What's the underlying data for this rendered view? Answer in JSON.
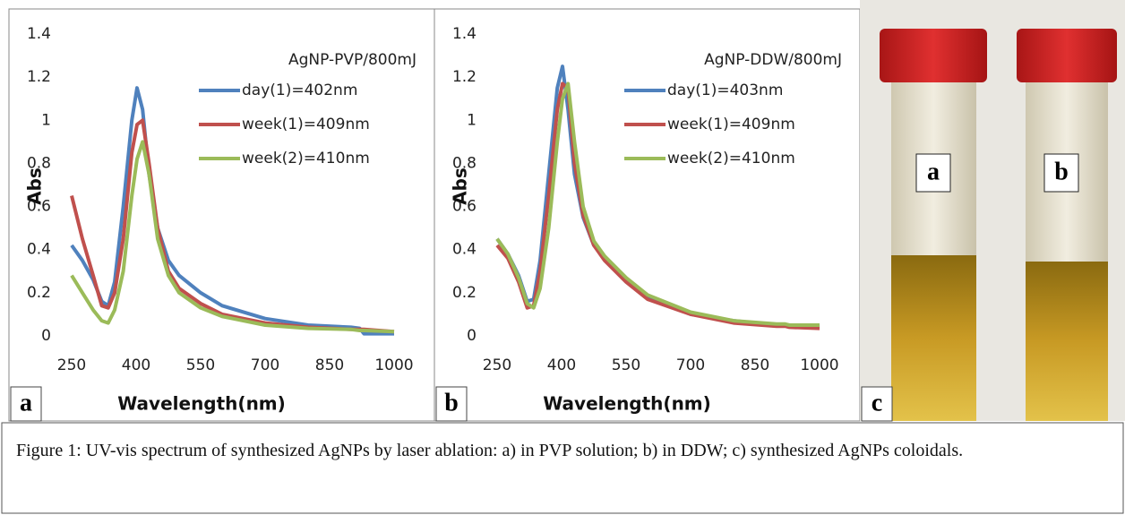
{
  "chart_data": [
    {
      "type": "line",
      "annotation": "AgNP-PVP/800mJ",
      "x_label": "Wavelength(nm)",
      "y_label": "Abs",
      "x": [
        250,
        275,
        300,
        320,
        335,
        350,
        370,
        390,
        402,
        415,
        430,
        450,
        475,
        500,
        550,
        600,
        700,
        800,
        900,
        920,
        930,
        1000
      ],
      "series": [
        {
          "name": "day(1)=402nm",
          "color": "#4f81bd",
          "values": [
            0.42,
            0.35,
            0.26,
            0.16,
            0.14,
            0.25,
            0.6,
            1.0,
            1.15,
            1.05,
            0.75,
            0.5,
            0.35,
            0.28,
            0.2,
            0.14,
            0.08,
            0.05,
            0.04,
            0.035,
            0.01,
            0.01
          ]
        },
        {
          "name": "week(1)=409nm",
          "color": "#c0504d",
          "values": [
            0.65,
            0.45,
            0.28,
            0.14,
            0.13,
            0.2,
            0.45,
            0.85,
            0.98,
            1.0,
            0.8,
            0.5,
            0.3,
            0.22,
            0.15,
            0.1,
            0.06,
            0.04,
            0.03,
            0.03,
            0.03,
            0.02
          ]
        },
        {
          "name": "week(2)=410nm",
          "color": "#9bbb59",
          "values": [
            0.28,
            0.2,
            0.12,
            0.07,
            0.06,
            0.12,
            0.3,
            0.65,
            0.82,
            0.9,
            0.75,
            0.45,
            0.28,
            0.2,
            0.13,
            0.09,
            0.05,
            0.035,
            0.03,
            0.025,
            0.025,
            0.02
          ]
        }
      ],
      "xlim": [
        250,
        1000
      ],
      "xticks": [
        250,
        400,
        550,
        700,
        850,
        1000
      ],
      "ylim": [
        0,
        1.4
      ],
      "yticks": [
        0,
        0.2,
        0.4,
        0.6,
        0.8,
        1,
        1.2,
        1.4
      ],
      "grid": false
    },
    {
      "type": "line",
      "annotation": "AgNP-DDW/800mJ",
      "x_label": "Wavelength(nm)",
      "y_label": "Abs",
      "x": [
        250,
        275,
        300,
        320,
        335,
        350,
        370,
        390,
        402,
        415,
        430,
        450,
        475,
        500,
        550,
        600,
        700,
        800,
        900,
        920,
        930,
        1000
      ],
      "series": [
        {
          "name": "day(1)=403nm",
          "color": "#4f81bd",
          "values": [
            0.45,
            0.38,
            0.28,
            0.16,
            0.17,
            0.35,
            0.75,
            1.15,
            1.25,
            1.05,
            0.75,
            0.55,
            0.42,
            0.36,
            0.26,
            0.18,
            0.1,
            0.07,
            0.05,
            0.05,
            0.05,
            0.04
          ]
        },
        {
          "name": "week(1)=409nm",
          "color": "#c0504d",
          "values": [
            0.42,
            0.36,
            0.25,
            0.13,
            0.14,
            0.3,
            0.65,
            1.05,
            1.17,
            1.15,
            0.8,
            0.56,
            0.42,
            0.35,
            0.25,
            0.17,
            0.1,
            0.06,
            0.045,
            0.045,
            0.04,
            0.035
          ]
        },
        {
          "name": "week(2)=410nm",
          "color": "#9bbb59",
          "values": [
            0.45,
            0.38,
            0.27,
            0.15,
            0.13,
            0.22,
            0.5,
            0.9,
            1.1,
            1.17,
            0.9,
            0.6,
            0.44,
            0.37,
            0.27,
            0.19,
            0.11,
            0.07,
            0.055,
            0.055,
            0.05,
            0.05
          ]
        }
      ],
      "xlim": [
        250,
        1000
      ],
      "xticks": [
        250,
        400,
        550,
        700,
        850,
        1000
      ],
      "ylim": [
        0,
        1.4
      ],
      "yticks": [
        0,
        0.2,
        0.4,
        0.6,
        0.8,
        1,
        1.2,
        1.4
      ],
      "grid": false
    }
  ],
  "panel_labels": [
    "a",
    "b",
    "c"
  ],
  "photo_labels": [
    "a",
    "b"
  ],
  "caption": "Figure 1: UV-vis spectrum of synthesized AgNPs by laser ablation: a) in PVP solution; b) in DDW; c) synthesized AgNPs coloidals."
}
